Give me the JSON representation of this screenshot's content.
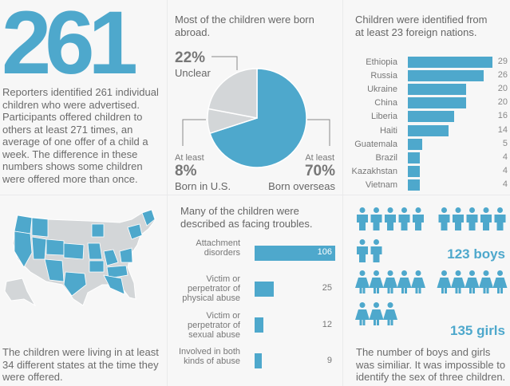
{
  "colors": {
    "accent": "#4ea8cc",
    "gray": "#d3d6d8"
  },
  "intro": {
    "number": "261",
    "text": "Reporters identified 261 individual children who were advertised.  Participants offered children to others at least 271 times, an average of one offer of a child a week. The difference in these numbers shows some children were offered more than once."
  },
  "pie": {
    "title": "Most of the children were born abroad.",
    "slices": [
      {
        "label": "Born overseas",
        "prefix": "At least",
        "pct_text": "70%",
        "value": 70
      },
      {
        "label": "Born in U.S.",
        "prefix": "At least",
        "pct_text": "8%",
        "value": 8
      },
      {
        "label": "Unclear",
        "prefix": "",
        "pct_text": "22%",
        "value": 22
      }
    ]
  },
  "chart_data": [
    {
      "type": "bar",
      "title": "Children were identified from at least 23 foreign nations.",
      "categories": [
        "Ethiopia",
        "Russia",
        "Ukraine",
        "China",
        "Liberia",
        "Haiti",
        "Guatemala",
        "Brazil",
        "Kazakhstan",
        "Vietnam"
      ],
      "values": [
        29,
        26,
        20,
        20,
        16,
        14,
        5,
        4,
        4,
        4
      ]
    },
    {
      "type": "bar",
      "title": "Many of the children were described as facing troubles.",
      "categories": [
        "Attachment disorders",
        "Victim or perpetrator of physical abuse",
        "Victim or perpetrator of sexual abuse",
        "Involved in both kinds of abuse"
      ],
      "values": [
        106,
        25,
        12,
        9
      ]
    }
  ],
  "map": {
    "caption": "The children were living in at least 34 different states at the time they were offered."
  },
  "gender": {
    "boys_label": "123 boys",
    "girls_label": "135 girls",
    "boys_icons": 12,
    "girls_icons": 13,
    "caption": "The number of boys and girls was similiar. It was impossible to identify the sex of three children."
  }
}
